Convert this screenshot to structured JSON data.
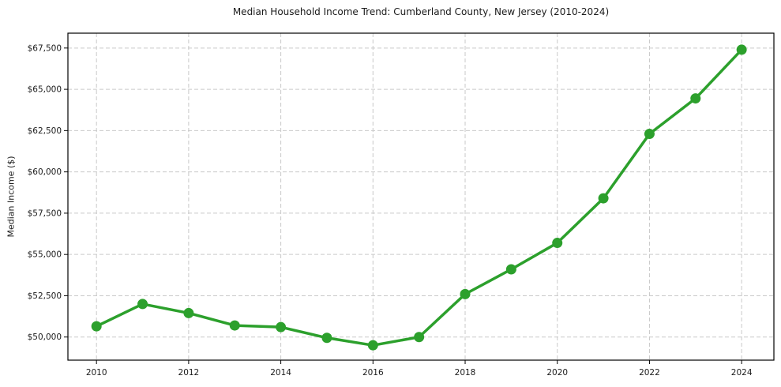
{
  "chart_data": {
    "type": "line",
    "title": "Median Household Income Trend: Cumberland County, New Jersey (2010-2024)",
    "ylabel": "Median Income ($)",
    "xlabel": "",
    "x": [
      2010,
      2011,
      2012,
      2013,
      2014,
      2015,
      2016,
      2017,
      2018,
      2019,
      2020,
      2021,
      2022,
      2023,
      2024
    ],
    "values": [
      50650,
      52000,
      51450,
      50700,
      50600,
      49950,
      49500,
      50000,
      52600,
      54100,
      55700,
      58400,
      62300,
      64450,
      67400
    ],
    "xticks": [
      2010,
      2012,
      2014,
      2016,
      2018,
      2020,
      2022,
      2024
    ],
    "yticks": [
      50000,
      52500,
      55000,
      57500,
      60000,
      62500,
      65000,
      67500
    ],
    "ytick_prefix": "$",
    "xlim": [
      2009.38,
      2024.7
    ],
    "ylim": [
      48600,
      68400
    ],
    "grid": true,
    "grid_style": "dashed",
    "legend_position": "none",
    "colors": {
      "line": "#2ca02c",
      "marker": "#2ca02c",
      "grid": "#c9c9c9",
      "spine": "#000000",
      "text": "#1a1a1a"
    }
  }
}
